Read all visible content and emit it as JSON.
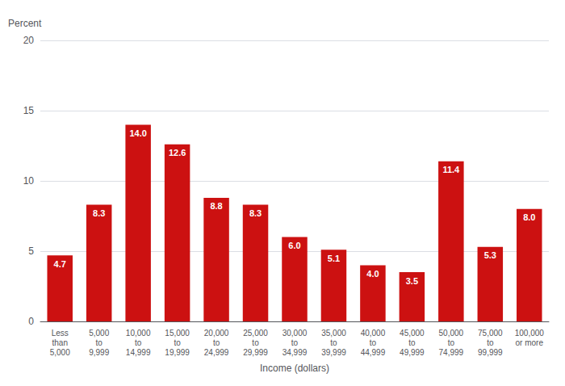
{
  "chart_data": {
    "type": "bar",
    "categories": [
      "Less\nthan\n5,000",
      "5,000\nto\n9,999",
      "10,000\nto\n14,999",
      "15,000\nto\n19,999",
      "20,000\nto\n24,999",
      "25,000\nto\n29,999",
      "30,000\nto\n34,999",
      "35,000\nto\n39,999",
      "40,000\nto\n44,999",
      "45,000\nto\n49,999",
      "50,000\nto\n74,999",
      "75,000\nto\n99,999",
      "100,000\nor more"
    ],
    "values": [
      4.7,
      8.3,
      14.0,
      12.6,
      8.8,
      8.3,
      6.0,
      5.1,
      4.0,
      3.5,
      11.4,
      5.3,
      8.0
    ],
    "value_labels": [
      "4.7",
      "8.3",
      "14.0",
      "12.6",
      "8.8",
      "8.3",
      "6.0",
      "5.1",
      "4.0",
      "3.5",
      "11.4",
      "5.3",
      "8.0"
    ],
    "color": "#CC1111",
    "xlabel": "Income (dollars)",
    "ylabel": "Percent",
    "ylim": [
      0,
      20
    ],
    "yticks": [
      0,
      5,
      10,
      15,
      20
    ],
    "grid": true,
    "data_labels": true
  }
}
